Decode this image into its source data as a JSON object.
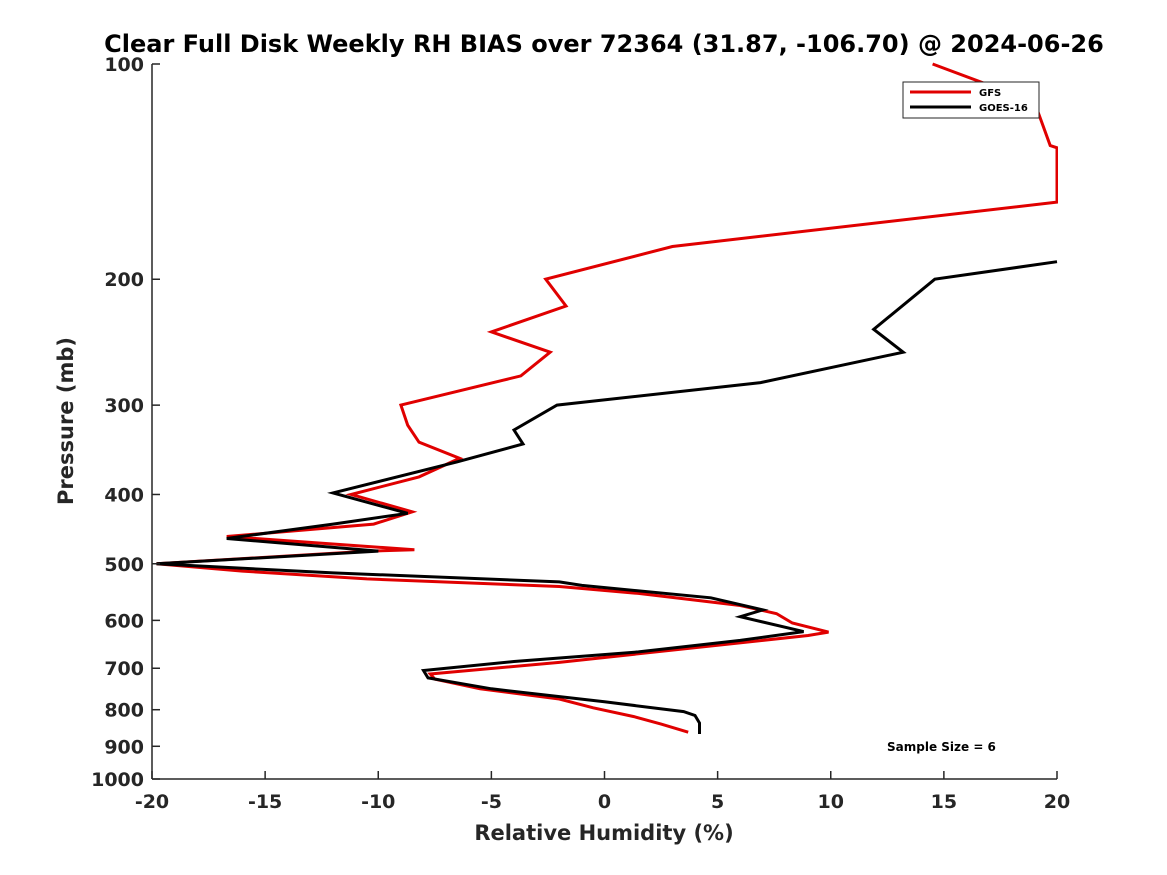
{
  "chart_data": {
    "type": "line",
    "title": "Clear Full Disk Weekly RH BIAS over 72364 (31.87, -106.70) @ 2024-06-26",
    "xlabel": "Relative Humidity (%)",
    "ylabel": "Pressure (mb)",
    "xlim": [
      -20,
      20
    ],
    "ylim": [
      1000,
      100
    ],
    "y_scale": "log",
    "y_reversed": true,
    "grid": false,
    "legend_position": "top-right",
    "x_ticks": [
      -20,
      -15,
      -10,
      -5,
      0,
      5,
      10,
      15,
      20
    ],
    "y_ticks": [
      100,
      200,
      300,
      400,
      500,
      600,
      700,
      800,
      900,
      1000
    ],
    "annotation": "Sample Size = 6",
    "series": [
      {
        "name": "GFS",
        "color": "#e00000",
        "points": [
          [
            14.5,
            100
          ],
          [
            19.0,
            113
          ],
          [
            19.7,
            130
          ],
          [
            20.0,
            131
          ],
          [
            20.0,
            156
          ],
          [
            3.0,
            180
          ],
          [
            -2.6,
            200
          ],
          [
            -1.7,
            218
          ],
          [
            -5.0,
            237
          ],
          [
            -2.4,
            253
          ],
          [
            -3.7,
            273
          ],
          [
            -9.0,
            300
          ],
          [
            -8.7,
            320
          ],
          [
            -8.2,
            338
          ],
          [
            -6.4,
            356
          ],
          [
            -8.2,
            378
          ],
          [
            -11.2,
            400
          ],
          [
            -8.5,
            423
          ],
          [
            -10.2,
            440
          ],
          [
            -16.7,
            458
          ],
          [
            -8.4,
            478
          ],
          [
            -10.4,
            480
          ],
          [
            -19.8,
            500
          ],
          [
            -16.0,
            512
          ],
          [
            -10.5,
            525
          ],
          [
            -2.0,
            538
          ],
          [
            1.5,
            550
          ],
          [
            6.0,
            572
          ],
          [
            7.6,
            587
          ],
          [
            8.3,
            605
          ],
          [
            9.9,
            623
          ],
          [
            9.0,
            630
          ],
          [
            5.0,
            650
          ],
          [
            -2.0,
            687
          ],
          [
            -7.7,
            713
          ],
          [
            -7.5,
            725
          ],
          [
            -5.5,
            748
          ],
          [
            -2.0,
            773
          ],
          [
            -0.5,
            795
          ],
          [
            1.3,
            818
          ],
          [
            2.5,
            838
          ],
          [
            3.7,
            860
          ]
        ]
      },
      {
        "name": "GOES-16",
        "color": "#000000",
        "points": [
          [
            20.0,
            189
          ],
          [
            14.6,
            200
          ],
          [
            11.9,
            235
          ],
          [
            13.2,
            253
          ],
          [
            6.9,
            279
          ],
          [
            -2.1,
            300
          ],
          [
            -4.0,
            325
          ],
          [
            -3.6,
            340
          ],
          [
            -6.5,
            360
          ],
          [
            -12.0,
            398
          ],
          [
            -8.7,
            425
          ],
          [
            -12.0,
            440
          ],
          [
            -16.7,
            461
          ],
          [
            -10.0,
            480
          ],
          [
            -19.8,
            500
          ],
          [
            -12.0,
            515
          ],
          [
            -2.0,
            530
          ],
          [
            -1.0,
            536
          ],
          [
            4.7,
            558
          ],
          [
            7.0,
            580
          ],
          [
            6.0,
            593
          ],
          [
            8.8,
            622
          ],
          [
            6.0,
            640
          ],
          [
            1.5,
            664
          ],
          [
            -4.0,
            685
          ],
          [
            -8.0,
            705
          ],
          [
            -7.8,
            722
          ],
          [
            -5.0,
            748
          ],
          [
            0.0,
            780
          ],
          [
            3.5,
            805
          ],
          [
            4.0,
            815
          ],
          [
            4.2,
            835
          ],
          [
            4.2,
            865
          ]
        ]
      }
    ]
  }
}
